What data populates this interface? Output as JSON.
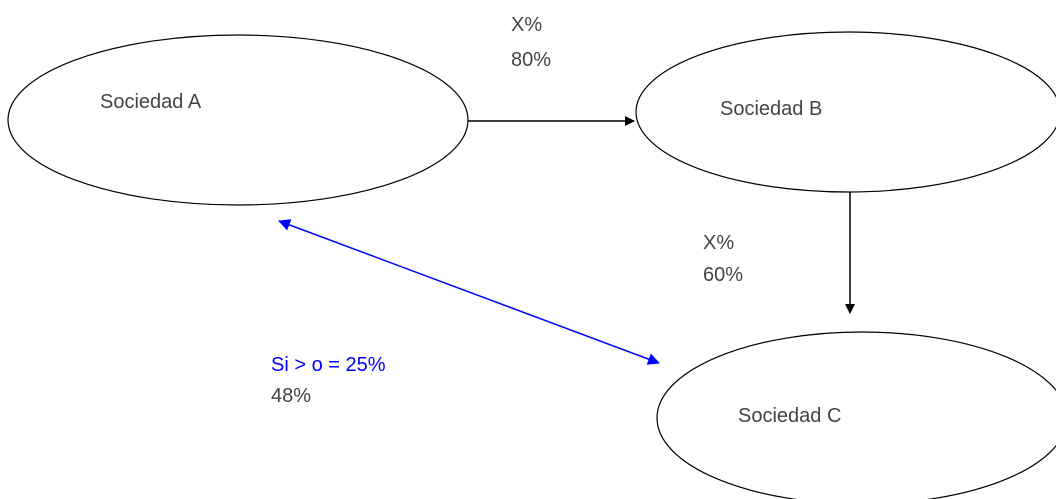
{
  "colors": {
    "edge_default": "#000000",
    "edge_highlight": "#0000ff",
    "text_default": "#444444",
    "text_highlight": "#0000ff"
  },
  "nodes": {
    "a": {
      "label": "Sociedad A"
    },
    "b": {
      "label": "Sociedad B"
    },
    "c": {
      "label": "Sociedad C"
    }
  },
  "edges": {
    "a_to_b": {
      "label_top": "X%",
      "label_bottom": "80%"
    },
    "b_to_c": {
      "label_top": "X%",
      "label_bottom": "60%"
    },
    "a_c": {
      "label_top": "Si > o = 25%",
      "label_bottom": "48%"
    }
  }
}
